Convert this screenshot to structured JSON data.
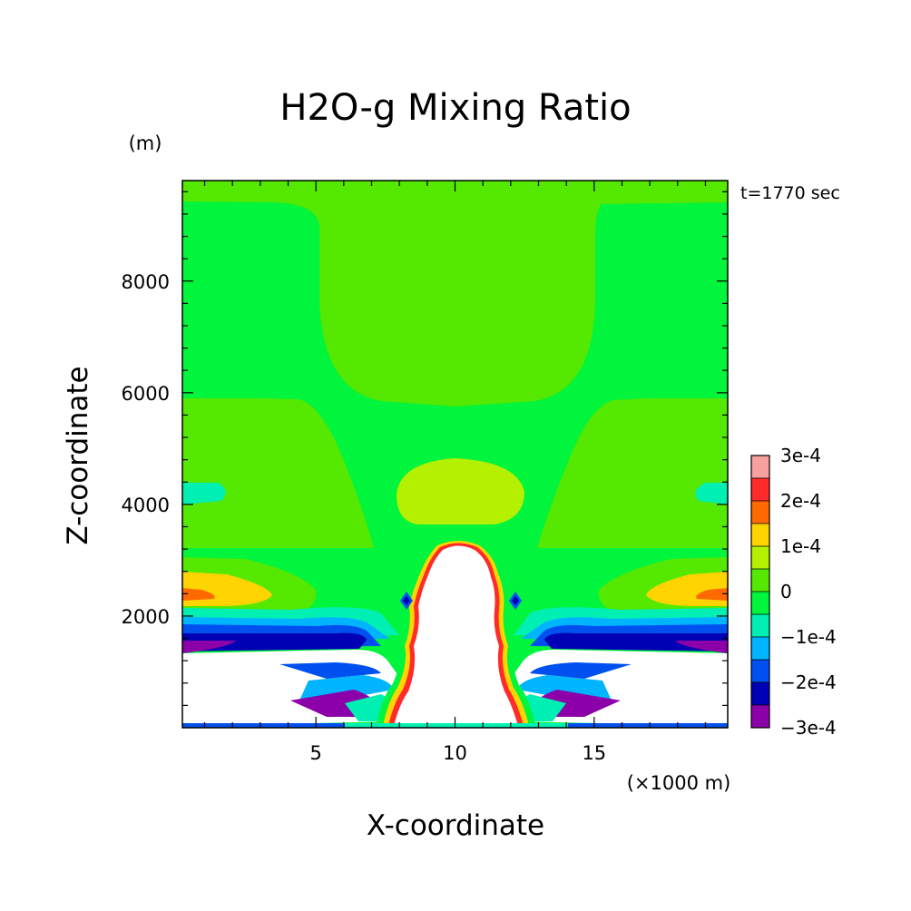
{
  "chart_data": {
    "type": "heatmap",
    "title": "H2O-g Mixing Ratio",
    "xlabel": "X-coordinate",
    "ylabel": "Z-coordinate",
    "x_unit": "(×1000 m)",
    "y_unit": "(m)",
    "time_label": "t=1770 sec",
    "xlim": [
      0.2,
      19.8
    ],
    "ylim": [
      0,
      9800
    ],
    "x_ticks": [
      "5",
      "10",
      "15"
    ],
    "y_ticks": [
      "2000",
      "4000",
      "6000",
      "8000"
    ],
    "colorbar": {
      "labels": [
        "3e-4",
        "2e-4",
        "1e-4",
        "0",
        "−1e-4",
        "−2e-4",
        "−3e-4"
      ],
      "levels": [
        0.0003,
        0.00025,
        0.0002,
        0.00015,
        0.0001,
        5e-05,
        0,
        -5e-05,
        -0.0001,
        -0.00015,
        -0.0002,
        -0.00025,
        -0.0003
      ],
      "colors": [
        "#f8a0a0",
        "#ff2a2a",
        "#ff6a00",
        "#ffd400",
        "#b4f000",
        "#55e800",
        "#00f53c",
        "#00f0b4",
        "#00b4ff",
        "#0050f0",
        "#0000b4",
        "#8c00aa"
      ]
    },
    "background_value": 0
  }
}
